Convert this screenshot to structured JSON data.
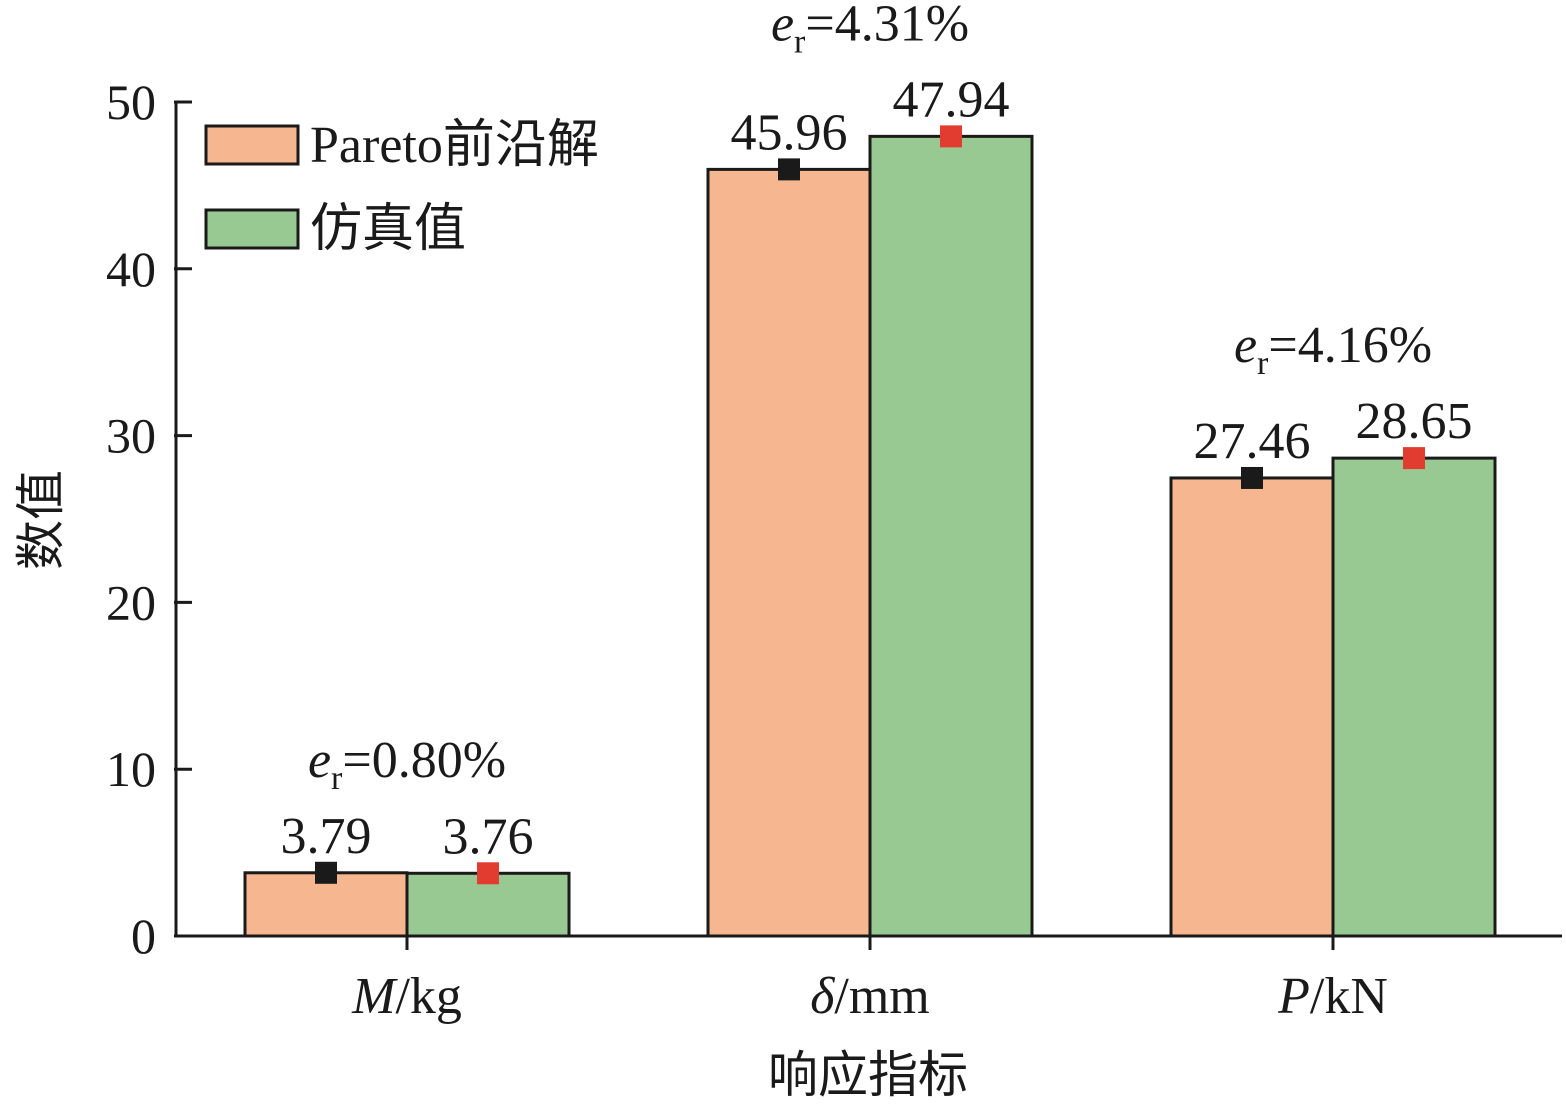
{
  "chart_data": {
    "type": "bar",
    "categories": [
      {
        "name": "M",
        "unit": "/kg"
      },
      {
        "name": "δ",
        "unit": "/mm"
      },
      {
        "name": "P",
        "unit": "/kN"
      }
    ],
    "series": [
      {
        "name": "Pareto前沿解",
        "values": [
          3.79,
          45.96,
          27.46
        ],
        "color": "#f5b690",
        "marker_color": "#1a1a1a"
      },
      {
        "name": "仿真值",
        "values": [
          3.76,
          47.94,
          28.65
        ],
        "color": "#99c992",
        "marker_color": "#e23c30"
      }
    ],
    "errors": [
      {
        "symbol": "e",
        "subscript": "r",
        "text": "=0.80%"
      },
      {
        "symbol": "e",
        "subscript": "r",
        "text": "=4.31%"
      },
      {
        "symbol": "e",
        "subscript": "r",
        "text": "=4.16%"
      }
    ],
    "xlabel": "响应指标",
    "ylabel": "数值",
    "ylim": [
      0,
      50
    ],
    "yticks": [
      0,
      10,
      20,
      30,
      40,
      50
    ],
    "legend_position": "top-left",
    "grid": false
  }
}
